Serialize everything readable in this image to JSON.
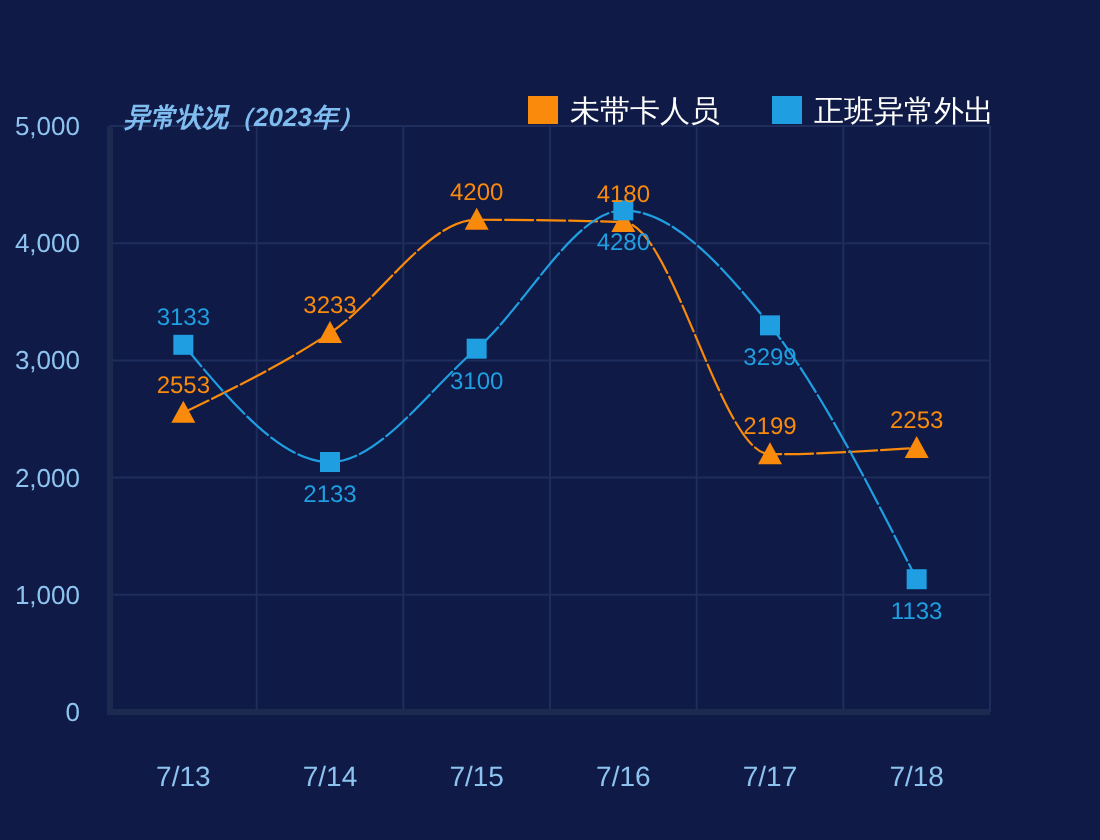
{
  "chart_data": {
    "type": "line",
    "title": "异常状况（2023年）",
    "categories": [
      "7/13",
      "7/14",
      "7/15",
      "7/16",
      "7/17",
      "7/18"
    ],
    "series": [
      {
        "name": "未带卡人员",
        "color": "#f98a0b",
        "marker": "triangle",
        "values": [
          2553,
          3233,
          4200,
          4180,
          2199,
          2253
        ]
      },
      {
        "name": "正班异常外出",
        "color": "#1f9fe2",
        "marker": "square",
        "values": [
          3133,
          2133,
          3100,
          4280,
          3299,
          1133
        ]
      }
    ],
    "ylim": [
      0,
      5000
    ],
    "yticks": [
      0,
      {
        "value": 1000,
        "label": "1,000"
      },
      {
        "value": 2000,
        "label": "2,000"
      },
      {
        "value": 3000,
        "label": "3,000"
      },
      {
        "value": 4000,
        "label": "4,000"
      },
      {
        "value": 5000,
        "label": "5,000"
      }
    ],
    "grid": true,
    "legend": "top right",
    "data_labels": true,
    "line_style": "dashed"
  }
}
